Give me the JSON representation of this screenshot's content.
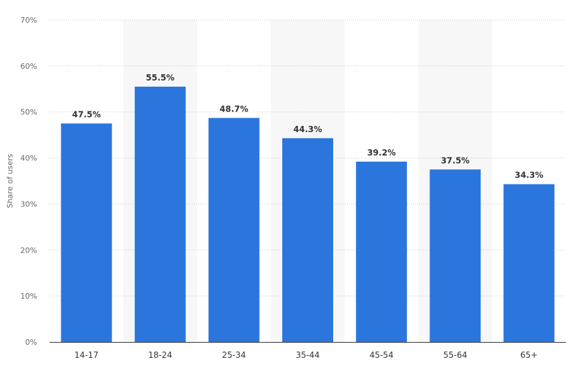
{
  "chart_data": {
    "type": "bar",
    "title": "",
    "xlabel": "",
    "ylabel": "Share of users",
    "categories": [
      "14-17",
      "18-24",
      "25-34",
      "35-44",
      "45-54",
      "55-64",
      "65+"
    ],
    "values": [
      47.5,
      55.5,
      48.7,
      44.3,
      39.2,
      37.5,
      34.3
    ],
    "data_labels": [
      "47.5%",
      "55.5%",
      "48.7%",
      "44.3%",
      "39.2%",
      "37.5%",
      "34.3%"
    ],
    "ylim": [
      0,
      70
    ],
    "y_ticks": [
      0,
      10,
      20,
      30,
      40,
      50,
      60,
      70
    ],
    "y_tick_labels": [
      "0%",
      "10%",
      "20%",
      "30%",
      "40%",
      "50%",
      "60%",
      "70%"
    ],
    "grid": true,
    "alternating_column_bands": true,
    "legend": "none",
    "colors": {
      "bar": "#2a76dd",
      "band": "#f7f7f7",
      "grid": "#c8c8c8",
      "axis": "#333333"
    }
  }
}
